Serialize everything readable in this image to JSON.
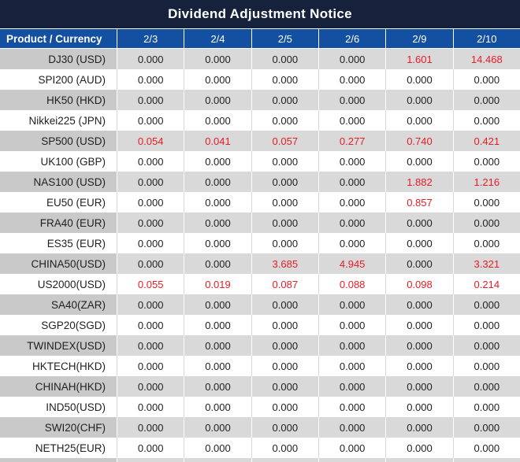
{
  "title": "Dividend Adjustment Notice",
  "table": {
    "product_header": "Product / Currency",
    "date_columns": [
      "2/3",
      "2/4",
      "2/5",
      "2/6",
      "2/9",
      "2/10"
    ],
    "rows": [
      {
        "product": "DJ30 (USD)",
        "values": [
          "0.000",
          "0.000",
          "0.000",
          "0.000",
          "1.601",
          "14.468"
        ],
        "red_flags": [
          false,
          false,
          false,
          false,
          true,
          true
        ]
      },
      {
        "product": "SPI200 (AUD)",
        "values": [
          "0.000",
          "0.000",
          "0.000",
          "0.000",
          "0.000",
          "0.000"
        ],
        "red_flags": [
          false,
          false,
          false,
          false,
          false,
          false
        ]
      },
      {
        "product": "HK50 (HKD)",
        "values": [
          "0.000",
          "0.000",
          "0.000",
          "0.000",
          "0.000",
          "0.000"
        ],
        "red_flags": [
          false,
          false,
          false,
          false,
          false,
          false
        ]
      },
      {
        "product": "Nikkei225 (JPN)",
        "values": [
          "0.000",
          "0.000",
          "0.000",
          "0.000",
          "0.000",
          "0.000"
        ],
        "red_flags": [
          false,
          false,
          false,
          false,
          false,
          false
        ]
      },
      {
        "product": "SP500 (USD)",
        "values": [
          "0.054",
          "0.041",
          "0.057",
          "0.277",
          "0.740",
          "0.421"
        ],
        "red_flags": [
          true,
          true,
          true,
          true,
          true,
          true
        ]
      },
      {
        "product": "UK100 (GBP)",
        "values": [
          "0.000",
          "0.000",
          "0.000",
          "0.000",
          "0.000",
          "0.000"
        ],
        "red_flags": [
          false,
          false,
          false,
          false,
          false,
          false
        ]
      },
      {
        "product": "NAS100 (USD)",
        "values": [
          "0.000",
          "0.000",
          "0.000",
          "0.000",
          "1.882",
          "1.216"
        ],
        "red_flags": [
          false,
          false,
          false,
          false,
          true,
          true
        ]
      },
      {
        "product": "EU50 (EUR)",
        "values": [
          "0.000",
          "0.000",
          "0.000",
          "0.000",
          "0.857",
          "0.000"
        ],
        "red_flags": [
          false,
          false,
          false,
          false,
          true,
          false
        ]
      },
      {
        "product": "FRA40 (EUR)",
        "values": [
          "0.000",
          "0.000",
          "0.000",
          "0.000",
          "0.000",
          "0.000"
        ],
        "red_flags": [
          false,
          false,
          false,
          false,
          false,
          false
        ]
      },
      {
        "product": "ES35 (EUR)",
        "values": [
          "0.000",
          "0.000",
          "0.000",
          "0.000",
          "0.000",
          "0.000"
        ],
        "red_flags": [
          false,
          false,
          false,
          false,
          false,
          false
        ]
      },
      {
        "product": "CHINA50(USD)",
        "values": [
          "0.000",
          "0.000",
          "3.685",
          "4.945",
          "0.000",
          "3.321"
        ],
        "red_flags": [
          false,
          false,
          true,
          true,
          false,
          true
        ]
      },
      {
        "product": "US2000(USD)",
        "values": [
          "0.055",
          "0.019",
          "0.087",
          "0.088",
          "0.098",
          "0.214"
        ],
        "red_flags": [
          true,
          true,
          true,
          true,
          true,
          true
        ]
      },
      {
        "product": "SA40(ZAR)",
        "values": [
          "0.000",
          "0.000",
          "0.000",
          "0.000",
          "0.000",
          "0.000"
        ],
        "red_flags": [
          false,
          false,
          false,
          false,
          false,
          false
        ]
      },
      {
        "product": "SGP20(SGD)",
        "values": [
          "0.000",
          "0.000",
          "0.000",
          "0.000",
          "0.000",
          "0.000"
        ],
        "red_flags": [
          false,
          false,
          false,
          false,
          false,
          false
        ]
      },
      {
        "product": "TWINDEX(USD)",
        "values": [
          "0.000",
          "0.000",
          "0.000",
          "0.000",
          "0.000",
          "0.000"
        ],
        "red_flags": [
          false,
          false,
          false,
          false,
          false,
          false
        ]
      },
      {
        "product": "HKTECH(HKD)",
        "values": [
          "0.000",
          "0.000",
          "0.000",
          "0.000",
          "0.000",
          "0.000"
        ],
        "red_flags": [
          false,
          false,
          false,
          false,
          false,
          false
        ]
      },
      {
        "product": "CHINAH(HKD)",
        "values": [
          "0.000",
          "0.000",
          "0.000",
          "0.000",
          "0.000",
          "0.000"
        ],
        "red_flags": [
          false,
          false,
          false,
          false,
          false,
          false
        ]
      },
      {
        "product": "IND50(USD)",
        "values": [
          "0.000",
          "0.000",
          "0.000",
          "0.000",
          "0.000",
          "0.000"
        ],
        "red_flags": [
          false,
          false,
          false,
          false,
          false,
          false
        ]
      },
      {
        "product": "SWI20(CHF)",
        "values": [
          "0.000",
          "0.000",
          "0.000",
          "0.000",
          "0.000",
          "0.000"
        ],
        "red_flags": [
          false,
          false,
          false,
          false,
          false,
          false
        ]
      },
      {
        "product": "NETH25(EUR)",
        "values": [
          "0.000",
          "0.000",
          "0.000",
          "0.000",
          "0.000",
          "0.000"
        ],
        "red_flags": [
          false,
          false,
          false,
          false,
          false,
          false
        ]
      }
    ]
  },
  "colors": {
    "title_bg": "#16223c",
    "header_bg": "#1450a2",
    "gray_row_bg": "#d9d9d9",
    "gray_product_bg": "#c9c9c9",
    "negative_red": "#e81c26",
    "value_text": "#1f1f1f"
  }
}
